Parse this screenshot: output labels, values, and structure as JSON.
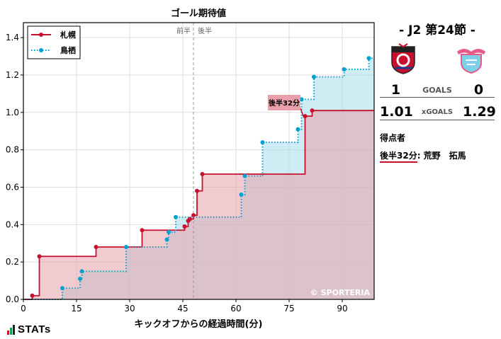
{
  "chart_data": {
    "type": "line",
    "subtype": "step-area",
    "title": "ゴール期待値",
    "xlabel": "キックオフからの経過時間(分)",
    "ylabel": "",
    "xlim": [
      0,
      99
    ],
    "ylim": [
      0,
      1.48
    ],
    "xticks": [
      0,
      15,
      30,
      45,
      60,
      75,
      90
    ],
    "yticks": [
      0.0,
      0.2,
      0.4,
      0.6,
      0.8,
      1.0,
      1.2,
      1.4
    ],
    "grid": true,
    "legend_position": "top-left",
    "half_line": {
      "x": 48,
      "labels": [
        "前半",
        "後半"
      ]
    },
    "series": [
      {
        "name": "札幌",
        "color": "#c8102e",
        "fill": "#e8a0aa",
        "style": "solid",
        "points": [
          [
            2.5,
            0.02
          ],
          [
            4.5,
            0.23
          ],
          [
            20.5,
            0.28
          ],
          [
            33.5,
            0.37
          ],
          [
            45.5,
            0.39
          ],
          [
            46.5,
            0.42
          ],
          [
            47,
            0.43
          ],
          [
            48,
            0.45
          ],
          [
            49,
            0.58
          ],
          [
            50.5,
            0.67
          ],
          [
            79.5,
            0.98
          ],
          [
            81.5,
            1.01
          ],
          [
            99,
            1.01
          ]
        ]
      },
      {
        "name": "鳥栖",
        "color": "#00a0d2",
        "fill": "#a8dceb",
        "style": "dotted",
        "points": [
          [
            11,
            0.06
          ],
          [
            16,
            0.11
          ],
          [
            16.5,
            0.15
          ],
          [
            29,
            0.28
          ],
          [
            40.5,
            0.32
          ],
          [
            41,
            0.36
          ],
          [
            43,
            0.44
          ],
          [
            61.5,
            0.56
          ],
          [
            62.5,
            0.66
          ],
          [
            67.5,
            0.84
          ],
          [
            77.5,
            0.91
          ],
          [
            78.5,
            1.07
          ],
          [
            82,
            1.19
          ],
          [
            90.5,
            1.23
          ],
          [
            97.5,
            1.29
          ],
          [
            99,
            1.29
          ]
        ]
      }
    ],
    "annotations": [
      {
        "text": "後半32分",
        "x": 79,
        "y": 0.98
      }
    ],
    "watermark": "© SPORTERIA"
  },
  "match": {
    "title": "- J2 第24節 -",
    "home": {
      "name": "札幌",
      "goals": "1",
      "xgoals": "1.01"
    },
    "away": {
      "name": "鳥栖",
      "goals": "0",
      "xgoals": "1.29"
    },
    "goals_label": "GOALS",
    "xgoals_label": "xGOALS"
  },
  "scorers": {
    "title": "得点者",
    "entries": [
      {
        "time": "後半32分",
        "player": ": 荒野　拓馬"
      }
    ]
  },
  "footer": {
    "logo_text": "STATs"
  },
  "colors": {
    "home": "#c8102e",
    "away": "#00a0d2",
    "grid": "#dddddd"
  },
  "icons": {
    "home_crest": "consadole-crest-icon",
    "away_crest": "sagan-crest-icon"
  }
}
